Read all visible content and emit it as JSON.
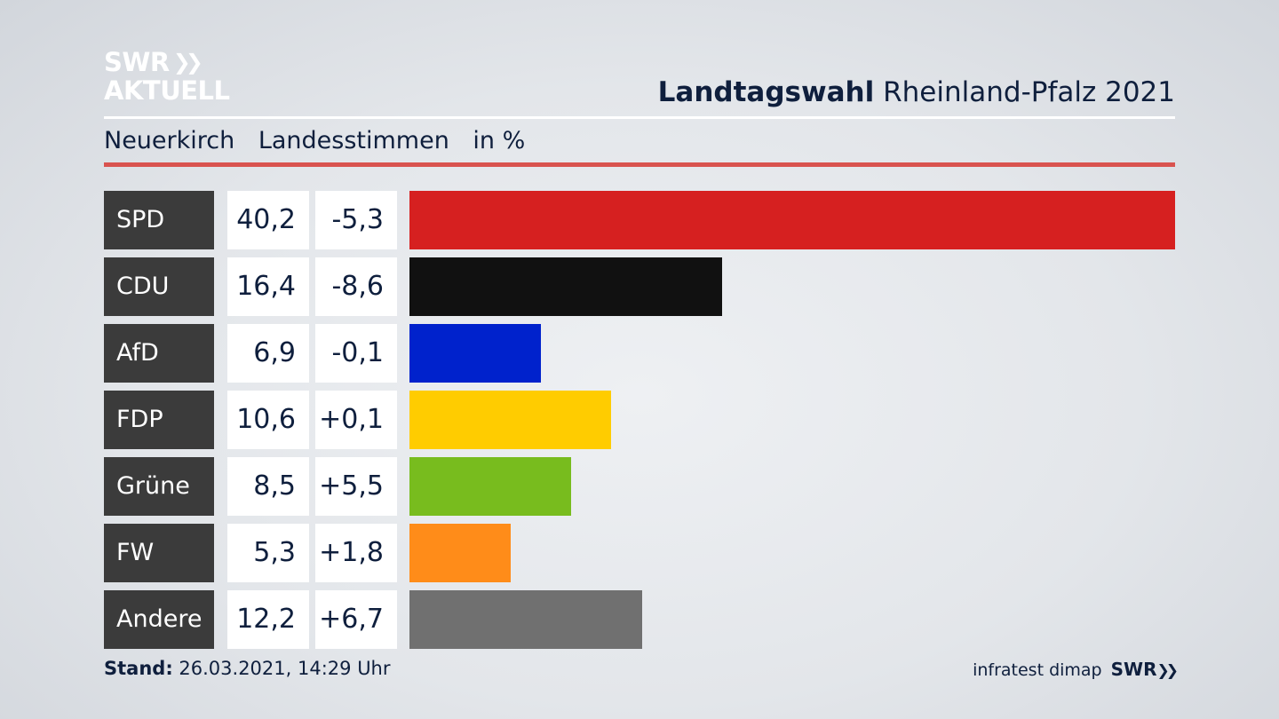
{
  "brand": {
    "logo_line1": "SWR",
    "logo_line2": "AKTUELL"
  },
  "header": {
    "title_bold": "Landtagswahl",
    "title_rest": "Rheinland-Pfalz 2021"
  },
  "subtitle": {
    "place": "Neuerkirch",
    "measure": "Landesstimmen",
    "unit": "in %"
  },
  "colors": {
    "accent_rule": "#d9534f",
    "label_bg": "#3b3b3b"
  },
  "chart_data": {
    "type": "bar",
    "orientation": "horizontal",
    "title": "Landtagswahl Rheinland-Pfalz 2021",
    "subtitle": "Neuerkirch Landesstimmen in %",
    "categories": [
      "SPD",
      "CDU",
      "AfD",
      "FDP",
      "Grüne",
      "FW",
      "Andere"
    ],
    "values": [
      40.2,
      16.4,
      6.9,
      10.6,
      8.5,
      5.3,
      12.2
    ],
    "value_labels": [
      "40,2",
      "16,4",
      "6,9",
      "10,6",
      "8,5",
      "5,3",
      "12,2"
    ],
    "changes": [
      -5.3,
      -8.6,
      -0.1,
      0.1,
      5.5,
      1.8,
      6.7
    ],
    "change_labels": [
      "-5,3",
      "-8,6",
      "-0,1",
      "+0,1",
      "+5,5",
      "+1,8",
      "+6,7"
    ],
    "bar_colors": [
      "#d62020",
      "#111111",
      "#0022cc",
      "#ffcc00",
      "#78bc1e",
      "#ff8c19",
      "#707070"
    ],
    "xlim": [
      0,
      40.2
    ]
  },
  "footer": {
    "stand_label": "Stand:",
    "stand_value": "26.03.2021, 14:29 Uhr",
    "source": "infratest dimap",
    "source_brand": "SWR"
  }
}
